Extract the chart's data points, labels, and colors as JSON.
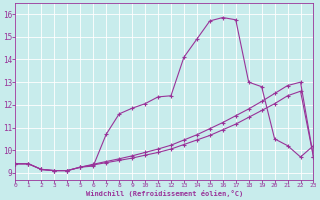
{
  "xlabel": "Windchill (Refroidissement éolien,°C)",
  "background_color": "#c8ecec",
  "grid_color": "#ffffff",
  "line_color": "#993399",
  "xlim": [
    0,
    23
  ],
  "ylim": [
    8.7,
    16.5
  ],
  "xticks": [
    0,
    1,
    2,
    3,
    4,
    5,
    6,
    7,
    8,
    9,
    10,
    11,
    12,
    13,
    14,
    15,
    16,
    17,
    18,
    19,
    20,
    21,
    22,
    23
  ],
  "yticks": [
    9,
    10,
    11,
    12,
    13,
    14,
    15,
    16
  ],
  "curve1_x": [
    0,
    1,
    2,
    3,
    4,
    5,
    6,
    7,
    8,
    9,
    10,
    11,
    12,
    13,
    14,
    15,
    16,
    17,
    18,
    19,
    20,
    21,
    22,
    23
  ],
  "curve1_y": [
    9.4,
    9.4,
    9.15,
    9.1,
    9.1,
    9.25,
    9.3,
    10.7,
    11.6,
    11.85,
    12.05,
    12.35,
    12.4,
    14.1,
    14.9,
    15.7,
    15.85,
    15.75,
    13.0,
    12.8,
    10.5,
    10.2,
    9.7,
    10.2
  ],
  "curve2_x": [
    0,
    1,
    2,
    3,
    4,
    5,
    6,
    7,
    8,
    9,
    10,
    11,
    12,
    13,
    14,
    15,
    16,
    17,
    18,
    19,
    20,
    21,
    22,
    23
  ],
  "curve2_y": [
    9.4,
    9.4,
    9.15,
    9.1,
    9.1,
    9.25,
    9.35,
    9.45,
    9.55,
    9.65,
    9.78,
    9.9,
    10.05,
    10.25,
    10.45,
    10.65,
    10.9,
    11.15,
    11.45,
    11.75,
    12.05,
    12.4,
    12.6,
    9.7
  ],
  "curve3_x": [
    0,
    1,
    2,
    3,
    4,
    5,
    6,
    7,
    8,
    9,
    10,
    11,
    12,
    13,
    14,
    15,
    16,
    17,
    18,
    19,
    20,
    21,
    22,
    23
  ],
  "curve3_y": [
    9.4,
    9.4,
    9.15,
    9.1,
    9.1,
    9.25,
    9.38,
    9.5,
    9.62,
    9.75,
    9.9,
    10.05,
    10.22,
    10.45,
    10.68,
    10.95,
    11.22,
    11.52,
    11.82,
    12.15,
    12.5,
    12.85,
    13.0,
    9.7
  ]
}
